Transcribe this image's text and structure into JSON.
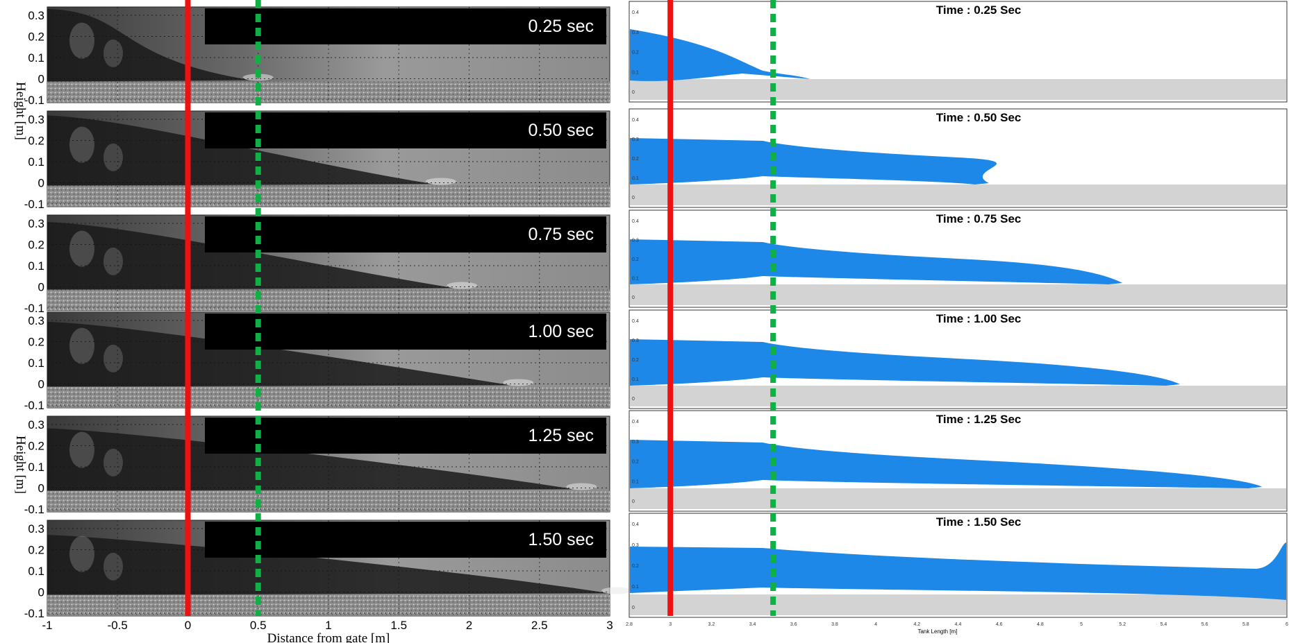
{
  "left_panels": {
    "y_axis_label": "Height [m]",
    "x_axis_label": "Distance from gate [m]",
    "y_ticks": [
      "0.3",
      "0.2",
      "0.1",
      "0",
      "-0.1"
    ],
    "x_ticks": [
      "-1",
      "-0.5",
      "0",
      "0.5",
      "1",
      "1.5",
      "2",
      "2.5",
      "3"
    ],
    "panels": [
      {
        "time_label": "0.25 sec",
        "front_m": 0.45
      },
      {
        "time_label": "0.50 sec",
        "front_m": 1.75
      },
      {
        "time_label": "0.75 sec",
        "front_m": 1.9
      },
      {
        "time_label": "1.00 sec",
        "front_m": 2.3
      },
      {
        "time_label": "1.25 sec",
        "front_m": 2.75
      },
      {
        "time_label": "1.50 sec",
        "front_m": 3.0
      }
    ]
  },
  "right_panels": {
    "x_axis_label": "Tank Length [m]",
    "x_ticks": [
      "2.8",
      "3",
      "3.2",
      "3.4",
      "3.6",
      "3.8",
      "4",
      "4.2",
      "4.4",
      "4.6",
      "4.8",
      "5",
      "5.2",
      "5.4",
      "5.6",
      "5.8",
      "6"
    ],
    "y_ticks": [
      "0.4",
      "0.3",
      "0.2",
      "0.1",
      "0"
    ],
    "panels": [
      {
        "title": "Time : 0.25 Sec",
        "front_m": 3.68
      },
      {
        "title": "Time : 0.50 Sec",
        "front_m": 4.55
      },
      {
        "title": "Time : 0.75 Sec",
        "front_m": 5.2
      },
      {
        "title": "Time : 1.00 Sec",
        "front_m": 5.48
      },
      {
        "title": "Time : 1.25 Sec",
        "front_m": 5.88
      },
      {
        "title": "Time : 1.50 Sec",
        "front_m": 6.0
      }
    ]
  },
  "colors": {
    "gate_line": "#ee1111",
    "reference_line": "#11b044",
    "water": "#1e88e8",
    "sediment": "#d3d3d3",
    "photo_dark": "#1a1a1a",
    "photo_light": "#a8a8a8"
  }
}
